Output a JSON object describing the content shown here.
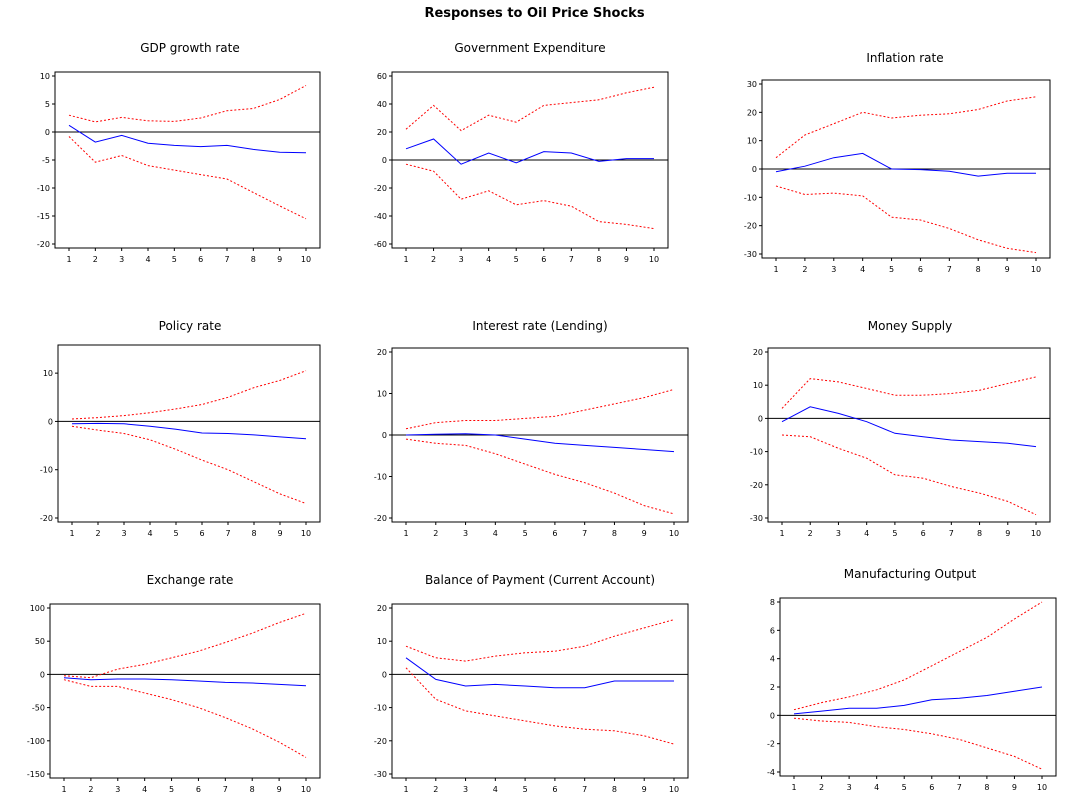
{
  "figure": {
    "title": "Responses to Oil Price Shocks"
  },
  "chart_data": [
    {
      "type": "line",
      "title": "GDP growth rate",
      "x": [
        1,
        2,
        3,
        4,
        5,
        6,
        7,
        8,
        9,
        10
      ],
      "xticklabels": [
        "1",
        "2",
        "3",
        "4",
        "5",
        "6",
        "7",
        "8",
        "9",
        "10"
      ],
      "ylim": [
        -20,
        10
      ],
      "yticks": [
        10,
        5,
        0,
        -5,
        -10,
        -15,
        -20
      ],
      "series": [
        {
          "role": "upper",
          "color": "#ff0000",
          "dash": true,
          "values": [
            3,
            1.8,
            2.6,
            2,
            1.9,
            2.5,
            3.8,
            4.2,
            5.8,
            8.3
          ]
        },
        {
          "role": "response",
          "color": "#0000ff",
          "dash": false,
          "values": [
            1.2,
            -1.8,
            -0.6,
            -2,
            -2.4,
            -2.6,
            -2.4,
            -3.1,
            -3.6,
            -3.7
          ]
        },
        {
          "role": "lower",
          "color": "#ff0000",
          "dash": true,
          "values": [
            -0.8,
            -5.4,
            -4.2,
            -6,
            -6.8,
            -7.6,
            -8.4,
            -10.8,
            -13.2,
            -15.5
          ]
        }
      ]
    },
    {
      "type": "line",
      "title": "Government Expenditure",
      "x": [
        1,
        2,
        3,
        4,
        5,
        6,
        7,
        8,
        9,
        10
      ],
      "xticklabels": [
        "1",
        "2",
        "3",
        "4",
        "5",
        "6",
        "7",
        "8",
        "9",
        "10"
      ],
      "ylim": [
        -60,
        60
      ],
      "yticks": [
        60,
        40,
        20,
        0,
        -20,
        -40,
        -60
      ],
      "series": [
        {
          "role": "upper",
          "color": "#ff0000",
          "dash": true,
          "values": [
            22,
            39,
            21,
            32,
            27,
            39,
            41,
            43,
            48,
            52
          ]
        },
        {
          "role": "response",
          "color": "#0000ff",
          "dash": false,
          "values": [
            8,
            15,
            -3,
            5,
            -2,
            6,
            5,
            -1,
            1,
            1
          ]
        },
        {
          "role": "lower",
          "color": "#ff0000",
          "dash": true,
          "values": [
            -3,
            -8,
            -28,
            -22,
            -32,
            -29,
            -33,
            -44,
            -46,
            -49
          ]
        }
      ]
    },
    {
      "type": "line",
      "title": "Inflation rate",
      "x": [
        1,
        2,
        3,
        4,
        5,
        6,
        7,
        8,
        9,
        10
      ],
      "xticklabels": [
        "1",
        "2",
        "3",
        "4",
        "5",
        "6",
        "7",
        "8",
        "9",
        "10"
      ],
      "ylim": [
        -30,
        30
      ],
      "yticks": [
        30,
        20,
        10,
        0,
        -10,
        -20,
        -30
      ],
      "series": [
        {
          "role": "upper",
          "color": "#ff0000",
          "dash": true,
          "values": [
            4,
            12,
            16,
            20,
            18,
            19,
            19.5,
            21,
            24,
            25.5
          ]
        },
        {
          "role": "response",
          "color": "#0000ff",
          "dash": false,
          "values": [
            -1,
            1,
            4,
            5.5,
            0,
            -0.2,
            -0.8,
            -2.5,
            -1.5,
            -1.5
          ]
        },
        {
          "role": "lower",
          "color": "#ff0000",
          "dash": true,
          "values": [
            -6,
            -9,
            -8.5,
            -9.5,
            -17,
            -18,
            -21,
            -25,
            -28,
            -29.5
          ]
        }
      ]
    },
    {
      "type": "line",
      "title": "Policy rate",
      "x": [
        1,
        2,
        3,
        4,
        5,
        6,
        7,
        8,
        9,
        10
      ],
      "xticklabels": [
        "1",
        "2",
        "3",
        "4",
        "5",
        "6",
        "7",
        "8",
        "9",
        "10"
      ],
      "ylim": [
        -20,
        15
      ],
      "yticks": [
        10,
        0,
        -10,
        -20
      ],
      "series": [
        {
          "role": "upper",
          "color": "#ff0000",
          "dash": true,
          "values": [
            0.5,
            0.8,
            1.2,
            1.8,
            2.6,
            3.5,
            5,
            7,
            8.5,
            10.5
          ]
        },
        {
          "role": "response",
          "color": "#0000ff",
          "dash": false,
          "values": [
            -0.5,
            -0.4,
            -0.5,
            -1,
            -1.6,
            -2.4,
            -2.5,
            -2.8,
            -3.2,
            -3.6
          ]
        },
        {
          "role": "lower",
          "color": "#ff0000",
          "dash": true,
          "values": [
            -1,
            -1.8,
            -2.5,
            -3.8,
            -5.8,
            -8,
            -10,
            -12.5,
            -15,
            -17
          ]
        }
      ]
    },
    {
      "type": "line",
      "title": "Interest rate (Lending)",
      "x": [
        1,
        2,
        3,
        4,
        5,
        6,
        7,
        8,
        9,
        10
      ],
      "xticklabels": [
        "1",
        "2",
        "3",
        "4",
        "5",
        "6",
        "7",
        "8",
        "9",
        "10"
      ],
      "ylim": [
        -20,
        20
      ],
      "yticks": [
        20,
        10,
        0,
        -10,
        -20
      ],
      "series": [
        {
          "role": "upper",
          "color": "#ff0000",
          "dash": true,
          "values": [
            1.5,
            3,
            3.5,
            3.5,
            4,
            4.5,
            6,
            7.5,
            9,
            11
          ]
        },
        {
          "role": "response",
          "color": "#0000ff",
          "dash": false,
          "values": [
            0,
            0.2,
            0.3,
            0,
            -1,
            -2,
            -2.5,
            -3,
            -3.5,
            -4
          ]
        },
        {
          "role": "lower",
          "color": "#ff0000",
          "dash": true,
          "values": [
            -1,
            -2,
            -2.5,
            -4.5,
            -7,
            -9.5,
            -11.5,
            -14,
            -17,
            -19
          ]
        }
      ]
    },
    {
      "type": "line",
      "title": "Money Supply",
      "x": [
        1,
        2,
        3,
        4,
        5,
        6,
        7,
        8,
        9,
        10
      ],
      "xticklabels": [
        "1",
        "2",
        "3",
        "4",
        "5",
        "6",
        "7",
        "8",
        "9",
        "10"
      ],
      "ylim": [
        -30,
        20
      ],
      "yticks": [
        20,
        10,
        0,
        -10,
        -20,
        -30
      ],
      "series": [
        {
          "role": "upper",
          "color": "#ff0000",
          "dash": true,
          "values": [
            3,
            12,
            11,
            9,
            7,
            7,
            7.5,
            8.5,
            10.5,
            12.5
          ]
        },
        {
          "role": "response",
          "color": "#0000ff",
          "dash": false,
          "values": [
            -1,
            3.5,
            1.5,
            -1,
            -4.5,
            -5.5,
            -6.5,
            -7,
            -7.5,
            -8.5
          ]
        },
        {
          "role": "lower",
          "color": "#ff0000",
          "dash": true,
          "values": [
            -5,
            -5.5,
            -9,
            -12,
            -17,
            -18,
            -20.5,
            -22.5,
            -25,
            -29
          ]
        }
      ]
    },
    {
      "type": "line",
      "title": "Exchange rate",
      "x": [
        1,
        2,
        3,
        4,
        5,
        6,
        7,
        8,
        9,
        10
      ],
      "xticklabels": [
        "1",
        "2",
        "3",
        "4",
        "5",
        "6",
        "7",
        "8",
        "9",
        "10"
      ],
      "ylim": [
        -150,
        100
      ],
      "yticks": [
        100,
        50,
        0,
        -50,
        -100,
        -150
      ],
      "series": [
        {
          "role": "upper",
          "color": "#ff0000",
          "dash": true,
          "values": [
            -2,
            -5,
            8,
            15,
            25,
            35,
            48,
            62,
            78,
            92
          ]
        },
        {
          "role": "response",
          "color": "#0000ff",
          "dash": false,
          "values": [
            -5,
            -8,
            -7,
            -7,
            -8,
            -10,
            -12,
            -13,
            -15,
            -17
          ]
        },
        {
          "role": "lower",
          "color": "#ff0000",
          "dash": true,
          "values": [
            -8,
            -18,
            -18,
            -28,
            -38,
            -50,
            -65,
            -82,
            -102,
            -125
          ]
        }
      ]
    },
    {
      "type": "line",
      "title": "Balance of Payment (Current Account)",
      "x": [
        1,
        2,
        3,
        4,
        5,
        6,
        7,
        8,
        9,
        10
      ],
      "xticklabels": [
        "1",
        "2",
        "3",
        "4",
        "5",
        "6",
        "7",
        "8",
        "9",
        "10"
      ],
      "ylim": [
        -30,
        20
      ],
      "yticks": [
        20,
        10,
        0,
        -10,
        -20,
        -30
      ],
      "series": [
        {
          "role": "upper",
          "color": "#ff0000",
          "dash": true,
          "values": [
            8.5,
            5,
            4,
            5.5,
            6.5,
            7,
            8.5,
            11.5,
            14,
            16.5
          ]
        },
        {
          "role": "response",
          "color": "#0000ff",
          "dash": false,
          "values": [
            5,
            -1.5,
            -3.5,
            -3,
            -3.5,
            -4,
            -4,
            -2,
            -2,
            -2
          ]
        },
        {
          "role": "lower",
          "color": "#ff0000",
          "dash": true,
          "values": [
            2,
            -7.5,
            -11,
            -12.5,
            -14,
            -15.5,
            -16.5,
            -17,
            -18.5,
            -21
          ]
        }
      ]
    },
    {
      "type": "line",
      "title": "Manufacturing Output",
      "x": [
        1,
        2,
        3,
        4,
        5,
        6,
        7,
        8,
        9,
        10
      ],
      "xticklabels": [
        "1",
        "2",
        "3",
        "4",
        "5",
        "6",
        "7",
        "8",
        "9",
        "10"
      ],
      "ylim": [
        -4,
        8
      ],
      "yticks": [
        8,
        6,
        4,
        2,
        0,
        -2,
        -4
      ],
      "series": [
        {
          "role": "upper",
          "color": "#ff0000",
          "dash": true,
          "values": [
            0.4,
            0.9,
            1.3,
            1.8,
            2.5,
            3.5,
            4.5,
            5.5,
            6.8,
            8
          ]
        },
        {
          "role": "response",
          "color": "#0000ff",
          "dash": false,
          "values": [
            0.1,
            0.3,
            0.5,
            0.5,
            0.7,
            1.1,
            1.2,
            1.4,
            1.7,
            2
          ]
        },
        {
          "role": "lower",
          "color": "#ff0000",
          "dash": true,
          "values": [
            -0.2,
            -0.4,
            -0.5,
            -0.8,
            -1,
            -1.3,
            -1.7,
            -2.3,
            -2.9,
            -3.8
          ]
        }
      ]
    }
  ]
}
